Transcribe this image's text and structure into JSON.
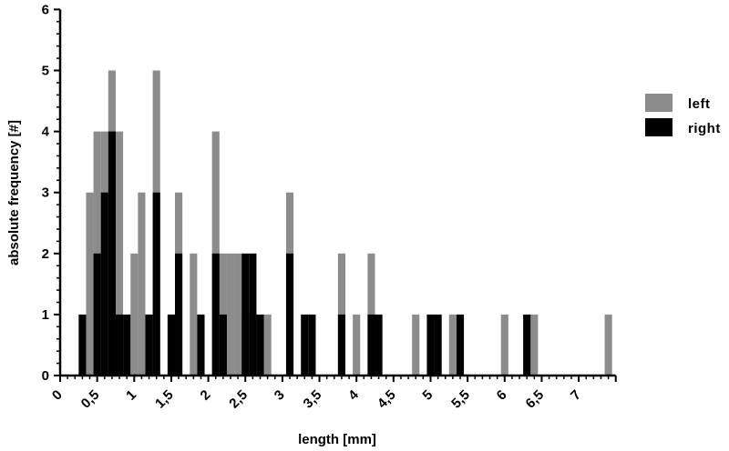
{
  "chart_data": {
    "type": "bar",
    "xlabel": "length [mm]",
    "ylabel": "absolute frequency [#]",
    "xlim": [
      0,
      7.5
    ],
    "ylim": [
      0,
      6
    ],
    "bin_width": 0.1,
    "grid": false,
    "legend_position": "right",
    "x_ticks": [
      "0",
      "0,5",
      "1",
      "1,5",
      "2",
      "2,5",
      "3",
      "3,5",
      "4",
      "4,5",
      "5",
      "5,5",
      "6",
      "6,5",
      "7"
    ],
    "y_ticks": [
      "0",
      "1",
      "2",
      "3",
      "4",
      "5",
      "6"
    ],
    "colors": {
      "left": "#8c8c8c",
      "right": "#000000"
    },
    "series": [
      {
        "name": "left",
        "x": [
          0.4,
          0.5,
          0.6,
          0.7,
          0.8,
          1.0,
          1.1,
          1.3,
          1.6,
          1.8,
          2.1,
          2.2,
          2.3,
          2.4,
          2.5,
          2.8,
          3.1,
          3.8,
          4.0,
          4.2,
          4.8,
          5.3,
          6.0,
          6.4,
          7.4
        ],
        "values": [
          3,
          4,
          4,
          5,
          4,
          2,
          3,
          5,
          3,
          2,
          4,
          2,
          2,
          2,
          1,
          1,
          3,
          2,
          1,
          2,
          1,
          1,
          1,
          1,
          1
        ]
      },
      {
        "name": "right",
        "x": [
          0.3,
          0.5,
          0.6,
          0.7,
          0.8,
          0.9,
          1.2,
          1.3,
          1.5,
          1.6,
          1.9,
          2.1,
          2.2,
          2.5,
          2.6,
          2.7,
          3.1,
          3.3,
          3.4,
          3.8,
          4.2,
          4.3,
          5.0,
          5.1,
          5.4,
          6.3
        ],
        "values": [
          1,
          2,
          3,
          4,
          1,
          1,
          1,
          3,
          1,
          2,
          1,
          2,
          1,
          2,
          2,
          1,
          2,
          1,
          1,
          1,
          1,
          1,
          1,
          1,
          1,
          1
        ]
      }
    ]
  }
}
